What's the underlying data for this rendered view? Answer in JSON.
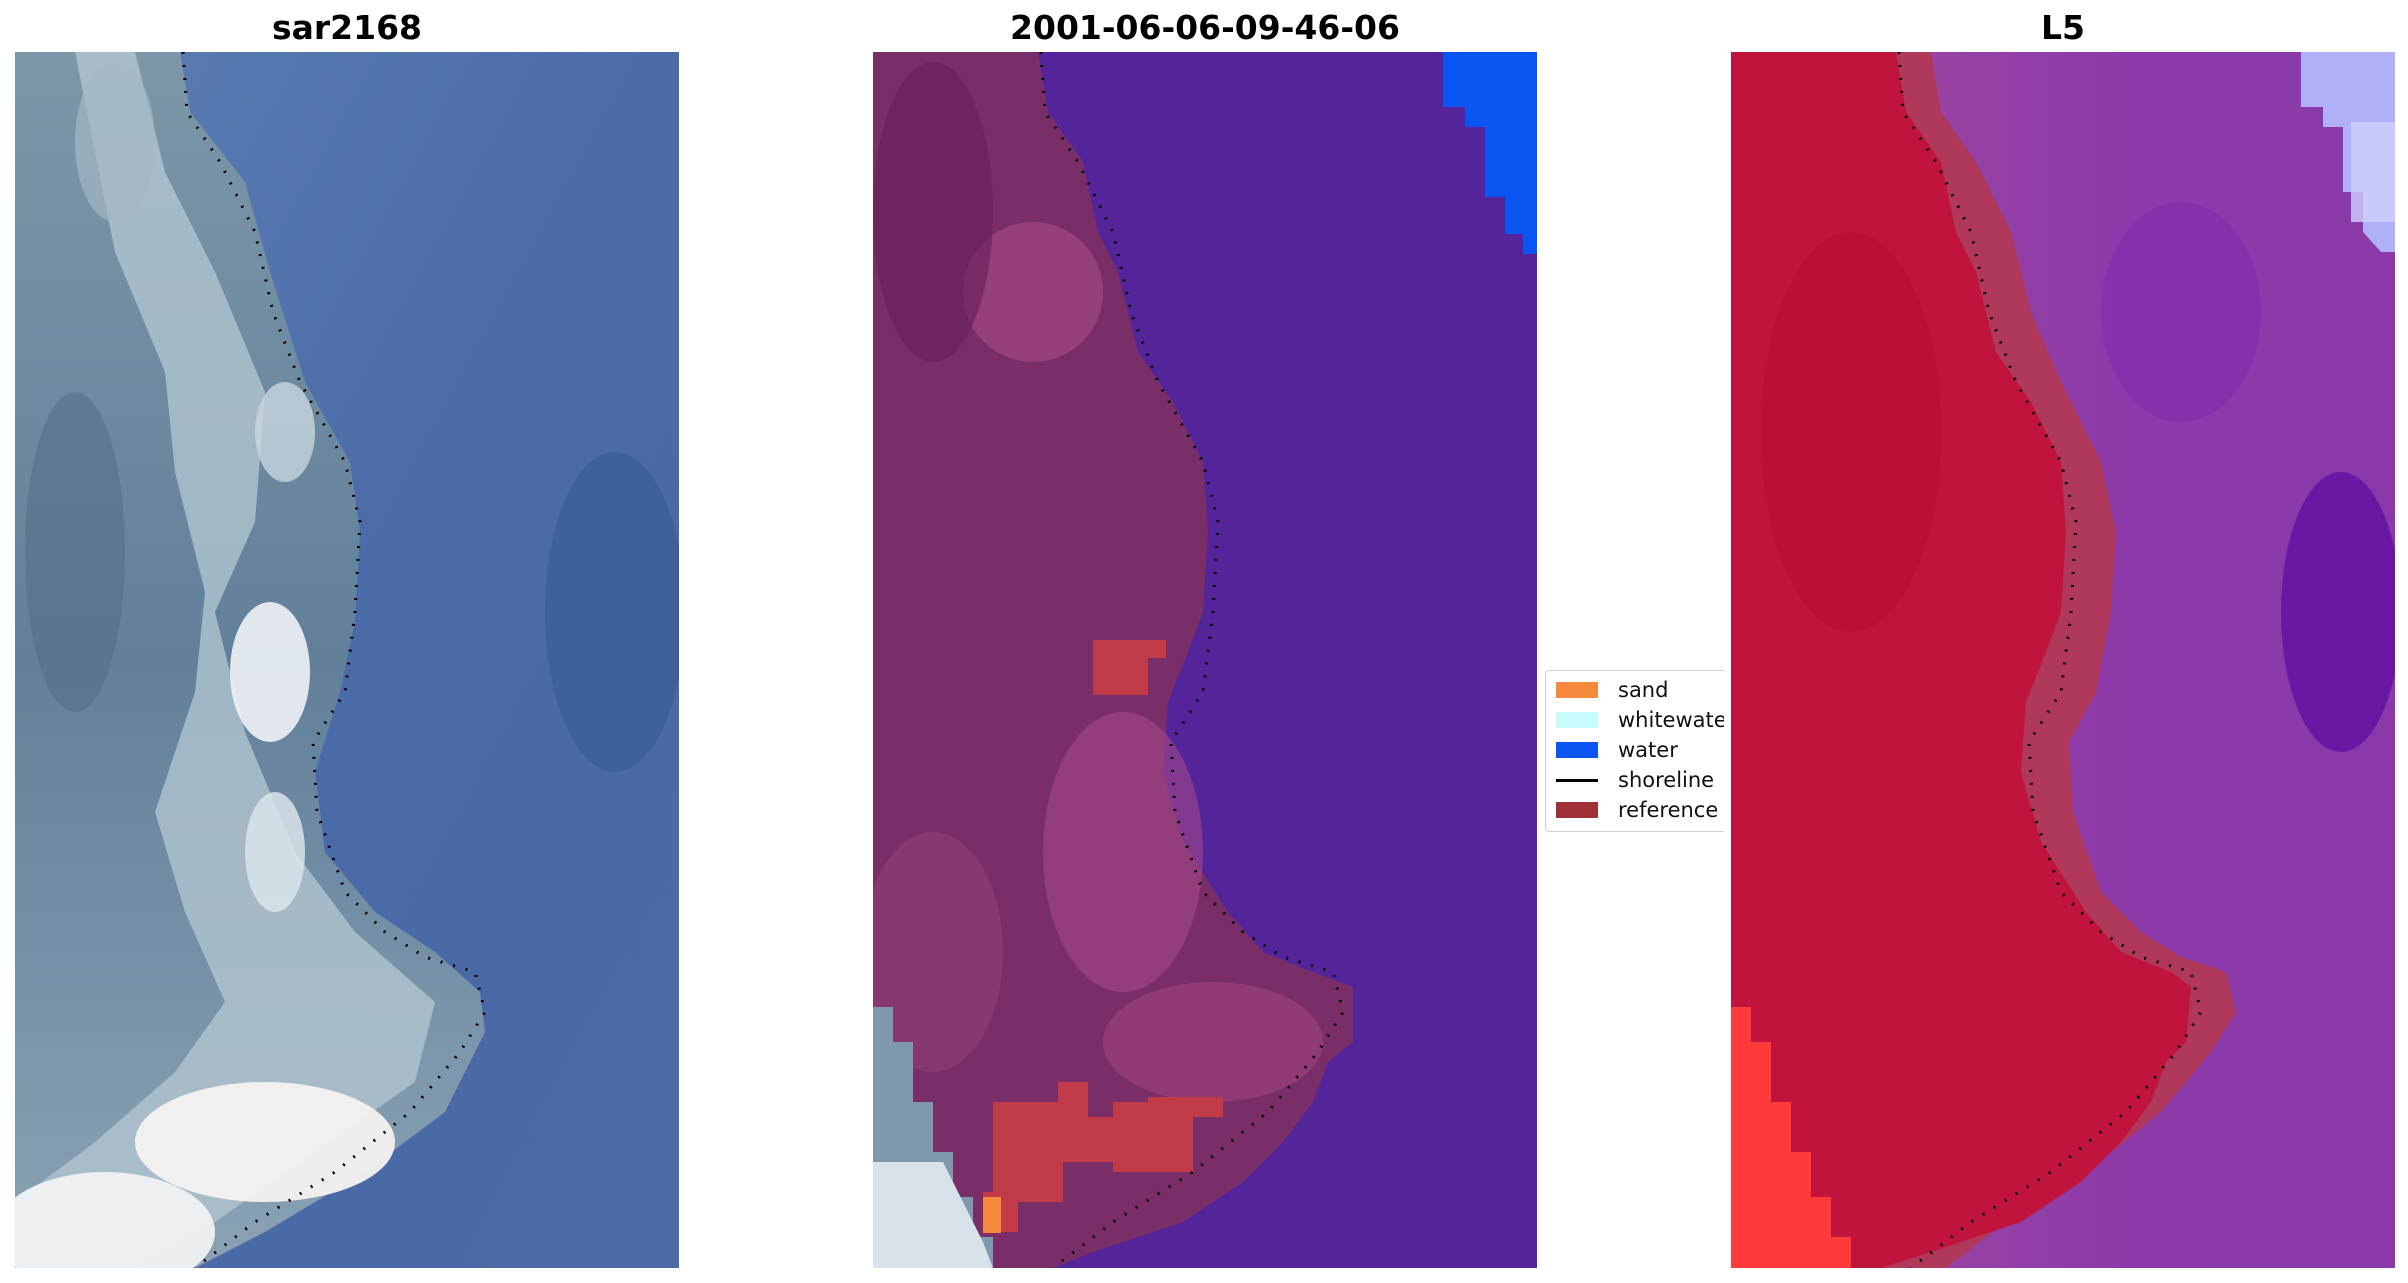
{
  "panels": [
    {
      "title": "sar2168"
    },
    {
      "title": "2001-06-06-09-46-06"
    },
    {
      "title": "L5"
    }
  ],
  "legend": {
    "items": [
      {
        "label": "sand",
        "color": "#f58a3c",
        "kind": "patch"
      },
      {
        "label": "whitewater",
        "color": "#c8fbfb",
        "kind": "patch"
      },
      {
        "label": "water",
        "color": "#0a55f2",
        "kind": "patch"
      },
      {
        "label": "shoreline",
        "color": "#000000",
        "kind": "line"
      },
      {
        "label": "reference s",
        "color": "#a03038",
        "kind": "patch"
      }
    ]
  },
  "colors": {
    "rgb_water": "#4a6aa6",
    "rgb_land": "#6c8aa0",
    "rgb_bright": "#e8ecf0",
    "classified_water": "#54249a",
    "classified_land": "#7a2e68",
    "classified_reference": "#c03a48",
    "classified_sand": "#f58a3c",
    "index_land": "#c0143c",
    "index_water": "#8c3aaa",
    "index_bright": "#ff3a3a"
  }
}
